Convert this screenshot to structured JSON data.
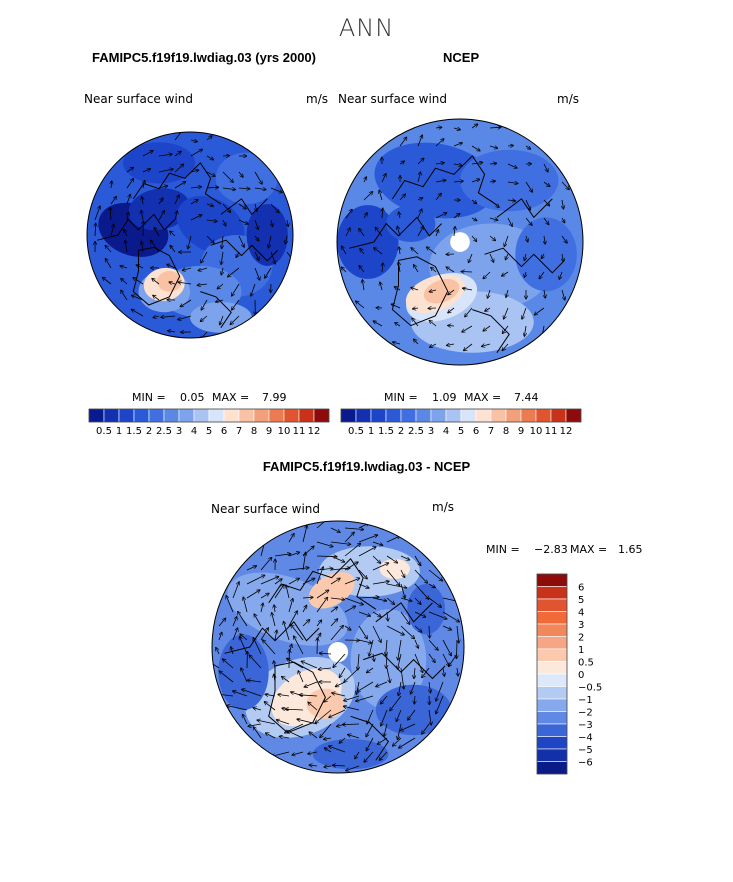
{
  "page": {
    "title": "ANN"
  },
  "chart_data": [
    {
      "type": "heatmap",
      "title": "FAMIPC5.f19f19.lwdiag.03 (yrs 2000)",
      "field_label": "Near surface wind",
      "units": "m/s",
      "min_label": "MIN =",
      "min_value": "0.05",
      "max_label": "MAX =",
      "max_value": "7.99",
      "colorbar_levels": [
        "0.5",
        "1",
        "1.5",
        "2",
        "2.5",
        "3",
        "4",
        "5",
        "6",
        "7",
        "8",
        "9",
        "10",
        "11",
        "12"
      ],
      "colorbar_colors": [
        "#0a1a8c",
        "#1230b0",
        "#1c45c9",
        "#2a5ad8",
        "#3f6fe0",
        "#5a88e6",
        "#7da3ec",
        "#a9c3f3",
        "#d7e4fa",
        "#fde2d2",
        "#f9c2a4",
        "#f3a07a",
        "#ec7b52",
        "#e0552f",
        "#c8321a",
        "#8e0b0b"
      ]
    },
    {
      "type": "heatmap",
      "title": "NCEP",
      "field_label": "Near surface wind",
      "units": "m/s",
      "min_label": "MIN =",
      "min_value": "1.09",
      "max_label": "MAX =",
      "max_value": "7.44",
      "colorbar_levels": [
        "0.5",
        "1",
        "1.5",
        "2",
        "2.5",
        "3",
        "4",
        "5",
        "6",
        "7",
        "8",
        "9",
        "10",
        "11",
        "12"
      ],
      "colorbar_colors": [
        "#0a1a8c",
        "#1230b0",
        "#1c45c9",
        "#2a5ad8",
        "#3f6fe0",
        "#5a88e6",
        "#7da3ec",
        "#a9c3f3",
        "#d7e4fa",
        "#fde2d2",
        "#f9c2a4",
        "#f3a07a",
        "#ec7b52",
        "#e0552f",
        "#c8321a",
        "#8e0b0b"
      ]
    },
    {
      "type": "heatmap",
      "title": "FAMIPC5.f19f19.lwdiag.03 - NCEP",
      "field_label": "Near surface wind",
      "units": "m/s",
      "min_label": "MIN =",
      "min_value": "−2.83",
      "max_label": "MAX =",
      "max_value": "1.65",
      "colorbar_levels": [
        "6",
        "5",
        "4",
        "3",
        "2",
        "1",
        "0.5",
        "0",
        "−0.5",
        "−1",
        "−2",
        "−3",
        "−4",
        "−5",
        "−6"
      ],
      "colorbar_colors": [
        "#8e0b0b",
        "#c8321a",
        "#e0552f",
        "#f06a3a",
        "#f3875c",
        "#f6a684",
        "#fbc9ad",
        "#fde9dc",
        "#dce9fb",
        "#b3cbf3",
        "#86a8ec",
        "#5f89e4",
        "#3a66d8",
        "#1f45c4",
        "#1230a8",
        "#0a1a86"
      ]
    }
  ]
}
